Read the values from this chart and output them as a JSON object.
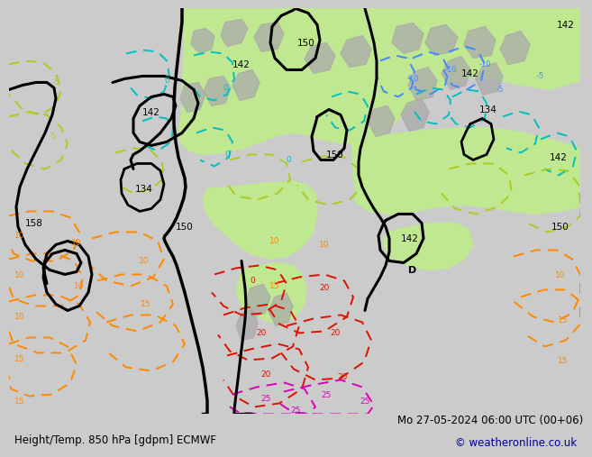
{
  "title_left": "Height/Temp. 850 hPa [gdpm] ECMWF",
  "title_right": "Mo 27-05-2024 06:00 UTC (00+06)",
  "copyright": "© weatheronline.co.uk",
  "bg_color": "#cbcbcb",
  "map_bg_color": "#c8c8c8",
  "green_fill_color": "#c0e890",
  "title_fontsize": 8.5,
  "copyright_color": "#000099",
  "cyan_color": "#00c0c0",
  "blue_color": "#4488ff",
  "lime_color": "#aacc22",
  "orange_color": "#ff8800",
  "red_color": "#dd1100",
  "magenta_color": "#dd00bb",
  "black_lw": 2.2,
  "dash_lw": 1.4
}
